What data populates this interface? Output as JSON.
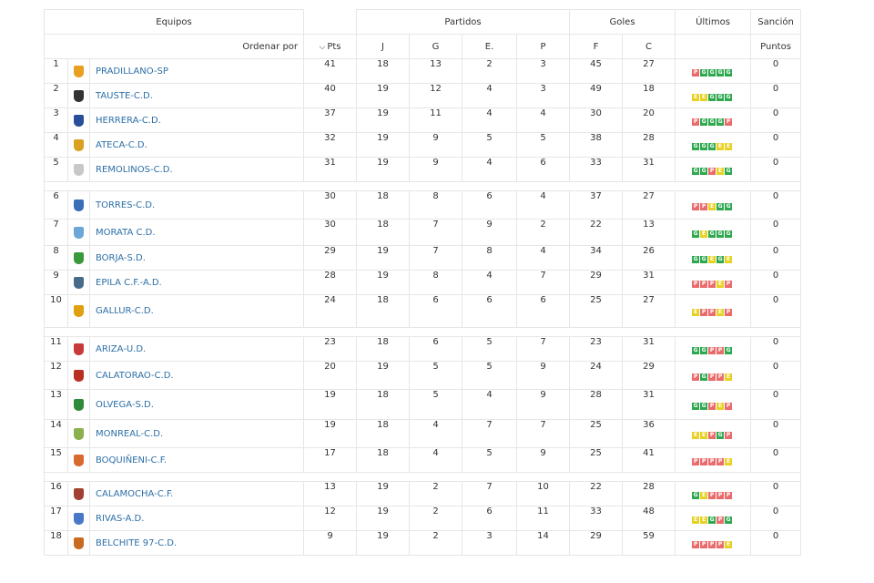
{
  "header": {
    "equipos": "Equipos",
    "partidos": "Partidos",
    "goles": "Goles",
    "ultimos": "Últimos",
    "sancion": "Sanción",
    "ordenar_por": "Ordenar por",
    "pts": "Pts",
    "j": "J",
    "g": "G",
    "e": "E.",
    "p": "P",
    "f": "F",
    "c": "C",
    "puntos": "Puntos"
  },
  "colors": {
    "win": "#2fa84f",
    "draw": "#e7d224",
    "loss": "#ea6b6b",
    "link": "#2d6fa7"
  },
  "teams": [
    {
      "pos": "1",
      "name": "PRADILLANO-SP",
      "pts": "41",
      "j": "18",
      "g": "13",
      "e": "2",
      "p": "3",
      "f": "45",
      "c": "27",
      "last": [
        "P",
        "G",
        "G",
        "G",
        "G"
      ],
      "sancion": "0",
      "crest": "#e8a020"
    },
    {
      "pos": "2",
      "name": "TAUSTE-C.D.",
      "pts": "40",
      "j": "19",
      "g": "12",
      "e": "4",
      "p": "3",
      "f": "49",
      "c": "18",
      "last": [
        "E",
        "E",
        "G",
        "G",
        "G"
      ],
      "sancion": "0",
      "crest": "#333333"
    },
    {
      "pos": "3",
      "name": "HERRERA-C.D.",
      "pts": "37",
      "j": "19",
      "g": "11",
      "e": "4",
      "p": "4",
      "f": "30",
      "c": "20",
      "last": [
        "P",
        "G",
        "G",
        "G",
        "P"
      ],
      "sancion": "0",
      "crest": "#2a4f9a"
    },
    {
      "pos": "4",
      "name": "ATECA-C.D.",
      "pts": "32",
      "j": "19",
      "g": "9",
      "e": "5",
      "p": "5",
      "f": "38",
      "c": "28",
      "last": [
        "G",
        "G",
        "G",
        "E",
        "E"
      ],
      "sancion": "0",
      "crest": "#d9a022"
    },
    {
      "pos": "5",
      "name": "REMOLINOS-C.D.",
      "pts": "31",
      "j": "19",
      "g": "9",
      "e": "4",
      "p": "6",
      "f": "33",
      "c": "31",
      "last": [
        "G",
        "G",
        "P",
        "E",
        "G"
      ],
      "sancion": "0",
      "crest": "#c8c8c8"
    },
    {
      "pos": "6",
      "name": "TORRES-C.D.",
      "pts": "30",
      "j": "18",
      "g": "8",
      "e": "6",
      "p": "4",
      "f": "37",
      "c": "27",
      "last": [
        "P",
        "P",
        "E",
        "G",
        "G"
      ],
      "sancion": "0",
      "crest": "#3a6fb8"
    },
    {
      "pos": "7",
      "name": "MORATA C.D.",
      "pts": "30",
      "j": "18",
      "g": "7",
      "e": "9",
      "p": "2",
      "f": "22",
      "c": "13",
      "last": [
        "G",
        "E",
        "G",
        "G",
        "G"
      ],
      "sancion": "0",
      "crest": "#6aa7d8"
    },
    {
      "pos": "8",
      "name": "BORJA-S.D.",
      "pts": "29",
      "j": "19",
      "g": "7",
      "e": "8",
      "p": "4",
      "f": "34",
      "c": "26",
      "last": [
        "G",
        "G",
        "E",
        "G",
        "E"
      ],
      "sancion": "0",
      "crest": "#3a9a3a"
    },
    {
      "pos": "9",
      "name": "EPILA C.F.-A.D.",
      "pts": "28",
      "j": "19",
      "g": "8",
      "e": "4",
      "p": "7",
      "f": "29",
      "c": "31",
      "last": [
        "P",
        "P",
        "P",
        "E",
        "P"
      ],
      "sancion": "0",
      "crest": "#4a6a8a"
    },
    {
      "pos": "10",
      "name": "GALLUR-C.D.",
      "pts": "24",
      "j": "18",
      "g": "6",
      "e": "6",
      "p": "6",
      "f": "25",
      "c": "27",
      "last": [
        "E",
        "P",
        "P",
        "E",
        "P"
      ],
      "sancion": "0",
      "crest": "#e0a010"
    },
    {
      "pos": "11",
      "name": "ARIZA-U.D.",
      "pts": "23",
      "j": "18",
      "g": "6",
      "e": "5",
      "p": "7",
      "f": "23",
      "c": "31",
      "last": [
        "G",
        "G",
        "P",
        "P",
        "G"
      ],
      "sancion": "0",
      "crest": "#c83a3a"
    },
    {
      "pos": "12",
      "name": "CALATORAO-C.D.",
      "pts": "20",
      "j": "19",
      "g": "5",
      "e": "5",
      "p": "9",
      "f": "24",
      "c": "29",
      "last": [
        "P",
        "G",
        "P",
        "P",
        "E"
      ],
      "sancion": "0",
      "crest": "#b83020"
    },
    {
      "pos": "13",
      "name": "OLVEGA-S.D.",
      "pts": "19",
      "j": "18",
      "g": "5",
      "e": "4",
      "p": "9",
      "f": "28",
      "c": "31",
      "last": [
        "G",
        "G",
        "P",
        "E",
        "P"
      ],
      "sancion": "0",
      "crest": "#2f8a3a"
    },
    {
      "pos": "14",
      "name": "MONREAL-C.D.",
      "pts": "19",
      "j": "18",
      "g": "4",
      "e": "7",
      "p": "7",
      "f": "25",
      "c": "36",
      "last": [
        "E",
        "E",
        "P",
        "G",
        "P"
      ],
      "sancion": "0",
      "crest": "#8ab050"
    },
    {
      "pos": "15",
      "name": "BOQUIÑENI-C.F.",
      "pts": "17",
      "j": "18",
      "g": "4",
      "e": "5",
      "p": "9",
      "f": "25",
      "c": "41",
      "last": [
        "P",
        "P",
        "P",
        "P",
        "E"
      ],
      "sancion": "0",
      "crest": "#d86a30"
    },
    {
      "pos": "16",
      "name": "CALAMOCHA-C.F.",
      "pts": "13",
      "j": "19",
      "g": "2",
      "e": "7",
      "p": "10",
      "f": "22",
      "c": "28",
      "last": [
        "G",
        "E",
        "P",
        "P",
        "P"
      ],
      "sancion": "0",
      "crest": "#a04030"
    },
    {
      "pos": "17",
      "name": "RIVAS-A.D.",
      "pts": "12",
      "j": "19",
      "g": "2",
      "e": "6",
      "p": "11",
      "f": "33",
      "c": "48",
      "last": [
        "E",
        "E",
        "G",
        "P",
        "G"
      ],
      "sancion": "0",
      "crest": "#4a78c8"
    },
    {
      "pos": "18",
      "name": "BELCHITE 97-C.D.",
      "pts": "9",
      "j": "19",
      "g": "2",
      "e": "3",
      "p": "14",
      "f": "29",
      "c": "59",
      "last": [
        "P",
        "P",
        "P",
        "P",
        "E"
      ],
      "sancion": "0",
      "crest": "#c86a20"
    }
  ]
}
